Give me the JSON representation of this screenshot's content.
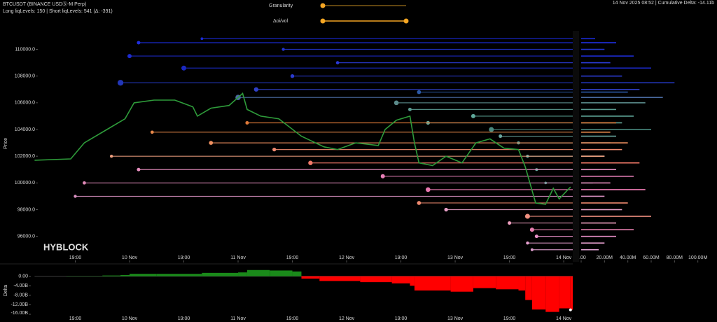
{
  "header": {
    "symbol": "BTCUSDT (BINANCE USDⓈ-M Perp)",
    "levels": "Long liqLevels: 150 | Short liqLevels: 541 (Δ: -391)",
    "granularity": "Granularity",
    "oi_vol": "Δoi/vol",
    "status": "14 Nov 2025 08:52 | Cumulative Delta: -14.11b"
  },
  "watermark": "HYBLOCK",
  "chart_data": [
    {
      "type": "liquidation-heatmap",
      "ylabel": "Price",
      "x": [
        3,
        11,
        14,
        19,
        23,
        25,
        29.4,
        34,
        38,
        39,
        42,
        46,
        49,
        50,
        53,
        57,
        62,
        67,
        70,
        74,
        79,
        80.5,
        83,
        86,
        87,
        88,
        91,
        94,
        97.5,
        100.6,
        103.7,
        106.8,
        110,
        111.5,
        113.8,
        116,
        117.7,
        119,
        121.5
      ],
      "values": [
        101700,
        101800,
        103000,
        104000,
        104800,
        106000,
        106200,
        106200,
        105700,
        105000,
        105600,
        105800,
        106700,
        105500,
        105000,
        104800,
        103500,
        102700,
        102500,
        103000,
        102800,
        104000,
        104700,
        105000,
        103000,
        101500,
        101300,
        102000,
        101500,
        103000,
        103300,
        102600,
        102500,
        101200,
        98500,
        98400,
        99600,
        98800,
        99700
      ],
      "color": "#2e9b3a",
      "xlim": [
        0,
        122
      ],
      "ylim": [
        94200,
        111600
      ],
      "xticks": [
        {
          "value": 12,
          "label": "19:00"
        },
        {
          "value": 24,
          "label": "10 Nov"
        },
        {
          "value": 36,
          "label": "19:00"
        },
        {
          "value": 48,
          "label": "11 Nov"
        },
        {
          "value": 60,
          "label": "19:00"
        },
        {
          "value": 72,
          "label": "12 Nov"
        },
        {
          "value": 84,
          "label": "19:00"
        },
        {
          "value": 96,
          "label": "13 Nov"
        },
        {
          "value": 108,
          "label": "19:00"
        },
        {
          "value": 120,
          "label": "14 Nov"
        }
      ],
      "yticks": [
        {
          "value": 96000,
          "label": "96000.0"
        },
        {
          "value": 98000,
          "label": "98000.0"
        },
        {
          "value": 100000,
          "label": "100000.0"
        },
        {
          "value": 102000,
          "label": "102000.0"
        },
        {
          "value": 104000,
          "label": "104000.0"
        },
        {
          "value": 106000,
          "label": "106000.0"
        },
        {
          "value": 108000,
          "label": "108000.0"
        },
        {
          "value": 110000,
          "label": "110000.0"
        }
      ],
      "size_xlim": [
        0,
        105
      ],
      "size_xticks": [
        {
          "value": 0,
          "label": "0.00"
        },
        {
          "value": 20,
          "label": "20.00M"
        },
        {
          "value": 40,
          "label": "40.00M"
        },
        {
          "value": 60,
          "label": "60.00M"
        },
        {
          "value": 80,
          "label": "80.00M"
        },
        {
          "value": 100,
          "label": "100.00M"
        }
      ],
      "levels": [
        {
          "price": 110800,
          "start": 40,
          "size": 12,
          "color": "#1a2bd6"
        },
        {
          "price": 110500,
          "start": 26,
          "size": 30,
          "color": "#1f2fe0"
        },
        {
          "price": 110000,
          "start": 58,
          "size": 20,
          "color": "#2233cc"
        },
        {
          "price": 109500,
          "start": 24,
          "size": 45,
          "color": "#1d2cd0"
        },
        {
          "price": 109000,
          "start": 70,
          "size": 25,
          "color": "#2a3ad8"
        },
        {
          "price": 108600,
          "start": 36,
          "size": 60,
          "color": "#1a28c0"
        },
        {
          "price": 108000,
          "start": 60,
          "size": 35,
          "color": "#2b3bd0"
        },
        {
          "price": 107500,
          "start": 22,
          "size": 80,
          "color": "#2236b8"
        },
        {
          "price": 107000,
          "start": 52,
          "size": 50,
          "color": "#3040c8"
        },
        {
          "price": 106800,
          "start": 88,
          "size": 40,
          "color": "#2c5aa8"
        },
        {
          "price": 106400,
          "start": 48,
          "size": 70,
          "color": "#4a6aa0"
        },
        {
          "price": 106000,
          "start": 83,
          "size": 55,
          "color": "#5a8a8a"
        },
        {
          "price": 105500,
          "start": 86,
          "size": 30,
          "color": "#5a9a90"
        },
        {
          "price": 105000,
          "start": 100,
          "size": 45,
          "color": "#5fa89a"
        },
        {
          "price": 104500,
          "start": 90,
          "size": 35,
          "color": "#6aaa9c"
        },
        {
          "price": 104000,
          "start": 104,
          "size": 60,
          "color": "#4a8a80"
        },
        {
          "price": 103500,
          "start": 106,
          "size": 30,
          "color": "#6aa8a0"
        },
        {
          "price": 103000,
          "start": 110,
          "size": 25,
          "color": "#5d9a8f"
        },
        {
          "price": 102000,
          "start": 112,
          "size": 20,
          "color": "#6ab0a5"
        },
        {
          "price": 101000,
          "start": 114,
          "size": 15,
          "color": "#6aa8a0"
        },
        {
          "price": 100000,
          "start": 116,
          "size": 10,
          "color": "#58a095"
        },
        {
          "price": 104500,
          "start": 50,
          "size": 30,
          "color": "#e07a3a"
        },
        {
          "price": 103800,
          "start": 29,
          "size": 25,
          "color": "#e8884a"
        },
        {
          "price": 103000,
          "start": 42,
          "size": 40,
          "color": "#f09060"
        },
        {
          "price": 102500,
          "start": 56,
          "size": 35,
          "color": "#f08a70"
        },
        {
          "price": 102000,
          "start": 20,
          "size": 20,
          "color": "#f0a080"
        },
        {
          "price": 101500,
          "start": 64,
          "size": 50,
          "color": "#f07868"
        },
        {
          "price": 101000,
          "start": 26,
          "size": 30,
          "color": "#e890c0"
        },
        {
          "price": 100500,
          "start": 80,
          "size": 45,
          "color": "#e880b8"
        },
        {
          "price": 100000,
          "start": 14,
          "size": 25,
          "color": "#e08ab8"
        },
        {
          "price": 99500,
          "start": 90,
          "size": 55,
          "color": "#e878b0"
        },
        {
          "price": 99000,
          "start": 12,
          "size": 20,
          "color": "#d890c0"
        },
        {
          "price": 98500,
          "start": 88,
          "size": 40,
          "color": "#f08a70"
        },
        {
          "price": 98000,
          "start": 94,
          "size": 35,
          "color": "#e8a0c8"
        },
        {
          "price": 97500,
          "start": 112,
          "size": 60,
          "color": "#f09080"
        },
        {
          "price": 97000,
          "start": 108,
          "size": 30,
          "color": "#f0a0c0"
        },
        {
          "price": 96500,
          "start": 113,
          "size": 45,
          "color": "#e880b0"
        },
        {
          "price": 96000,
          "start": 114,
          "size": 30,
          "color": "#e890c8"
        },
        {
          "price": 95500,
          "start": 112,
          "size": 20,
          "color": "#e8a0d0"
        },
        {
          "price": 95000,
          "start": 113,
          "size": 15,
          "color": "#e0a0d0"
        }
      ]
    },
    {
      "type": "delta",
      "ylabel": "Delta",
      "x": [
        3,
        10,
        18,
        22,
        24,
        30,
        40,
        48,
        50,
        55,
        60,
        62,
        66,
        75,
        82,
        86,
        87,
        95,
        100,
        105,
        110,
        111.5,
        113,
        116,
        119,
        121.5
      ],
      "values": [
        0,
        0.1,
        0.3,
        0.5,
        1.0,
        1.0,
        1.4,
        1.6,
        2.6,
        2.4,
        2.0,
        -1.0,
        -2.0,
        -2.5,
        -3.0,
        -4.0,
        -6.0,
        -6.5,
        -5.0,
        -5.5,
        -6.0,
        -10.0,
        -14.0,
        -15.0,
        -13.5,
        -14.11
      ],
      "colors": {
        "positive": "#1a8a1a",
        "negative": "#ff0000"
      },
      "xlim": [
        0,
        122
      ],
      "ylim": [
        -16,
        4
      ],
      "xticks": [
        {
          "value": 12,
          "label": "19:00"
        },
        {
          "value": 24,
          "label": "10 Nov"
        },
        {
          "value": 36,
          "label": "19:00"
        },
        {
          "value": 48,
          "label": "11 Nov"
        },
        {
          "value": 60,
          "label": "19:00"
        },
        {
          "value": 72,
          "label": "12 Nov"
        },
        {
          "value": 84,
          "label": "19:00"
        },
        {
          "value": 96,
          "label": "13 Nov"
        },
        {
          "value": 108,
          "label": "19:00"
        },
        {
          "value": 120,
          "label": "14 Nov"
        }
      ],
      "yticks": [
        {
          "value": 0,
          "label": "0.00"
        },
        {
          "value": -4,
          "label": "-4.00B"
        },
        {
          "value": -8,
          "label": "-8.00B"
        },
        {
          "value": -12,
          "label": "-12.00B"
        },
        {
          "value": -16,
          "label": "-16.00B"
        }
      ]
    }
  ]
}
